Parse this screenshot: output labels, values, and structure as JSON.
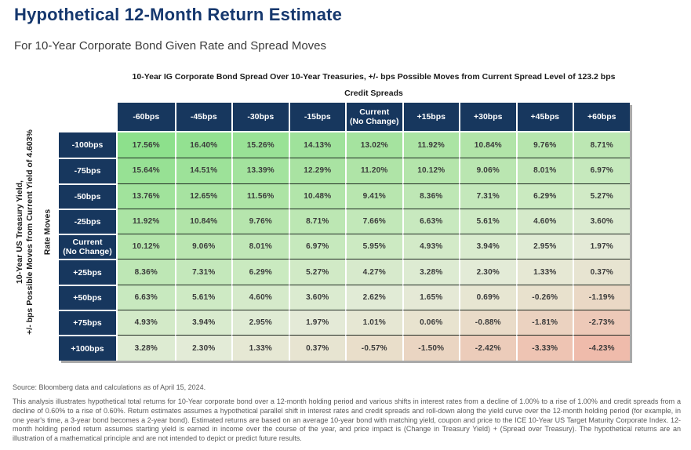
{
  "page": {
    "title": "Hypothetical 12-Month Return Estimate",
    "subtitle": "For 10-Year Corporate Bond Given Rate and Spread Moves"
  },
  "chart_data": {
    "type": "heatmap",
    "title": "Hypothetical 12-Month Return Estimate",
    "subtitle": "For 10-Year Corporate Bond Given Rate and Spread Moves",
    "columns_axis": {
      "note": "10-Year IG Corporate Bond Spread Over 10-Year Treasuries, +/- bps Possible Moves from Current Spread Level of 123.2 bps",
      "label": "Credit Spreads"
    },
    "rows_axis": {
      "note_line1": "10-Year US Treasury Yield,",
      "note_line2": "+/- bps Possible Moves from Current Yield of 4.603%",
      "label": "Rate Moves"
    },
    "columns": [
      "-60bps",
      "-45bps",
      "-30bps",
      "-15bps",
      "Current\n(No Change)",
      "+15bps",
      "+30bps",
      "+45bps",
      "+60bps"
    ],
    "rows": [
      "-100bps",
      "-75bps",
      "-50bps",
      "-25bps",
      "Current\n(No Change)",
      "+25bps",
      "+50bps",
      "+75bps",
      "+100bps"
    ],
    "values_pct": [
      [
        17.56,
        16.4,
        15.26,
        14.13,
        13.02,
        11.92,
        10.84,
        9.76,
        8.71
      ],
      [
        15.64,
        14.51,
        13.39,
        12.29,
        11.2,
        10.12,
        9.06,
        8.01,
        6.97
      ],
      [
        13.76,
        12.65,
        11.56,
        10.48,
        9.41,
        8.36,
        7.31,
        6.29,
        5.27
      ],
      [
        11.92,
        10.84,
        9.76,
        8.71,
        7.66,
        6.63,
        5.61,
        4.6,
        3.6
      ],
      [
        10.12,
        9.06,
        8.01,
        6.97,
        5.95,
        4.93,
        3.94,
        2.95,
        1.97
      ],
      [
        8.36,
        7.31,
        6.29,
        5.27,
        4.27,
        3.28,
        2.3,
        1.33,
        0.37
      ],
      [
        6.63,
        5.61,
        4.6,
        3.6,
        2.62,
        1.65,
        0.69,
        -0.26,
        -1.19
      ],
      [
        4.93,
        3.94,
        2.95,
        1.97,
        1.01,
        0.06,
        -0.88,
        -1.81,
        -2.73
      ],
      [
        3.28,
        2.3,
        1.33,
        0.37,
        -0.57,
        -1.5,
        -2.42,
        -3.33,
        -4.23
      ]
    ],
    "value_suffix": "%",
    "value_decimals": 2,
    "color_scale": {
      "stops": [
        {
          "value": -4.23,
          "color": "#EFBBAB"
        },
        {
          "value": 0.0,
          "color": "#E8E3CF"
        },
        {
          "value": 2.2,
          "color": "#E4EBD8"
        },
        {
          "value": 6.0,
          "color": "#CCEAC2"
        },
        {
          "value": 10.0,
          "color": "#B5E5AC"
        },
        {
          "value": 17.56,
          "color": "#8DE08C"
        }
      ]
    }
  },
  "footer": {
    "source": "Source: Bloomberg data and calculations as of April 15, 2024.",
    "disclosure": "This analysis illustrates hypothetical total returns for 10-Year corporate bond over a 12-month holding period and various shifts in interest rates from a decline of 1.00% to a rise of 1.00% and credit spreads from a decline of 0.60% to a rise of 0.60%. Return estimates assumes a hypothetical parallel shift in interest rates and credit spreads and roll-down along the yield curve over the 12-month holding period (for example, in one year's time, a 3-year bond becomes a 2-year bond). Estimated returns are based on an average 10-year bond with matching yield, coupon and price to the ICE 10-Year US Target Maturity Corporate Index. 12-month holding period return assumes starting yield is earned in income over the course of the year, and price impact is (Change in Treasury Yield) + (Spread over Treasury). The hypothetical returns are an illustration of a mathematical principle and are not intended to depict or predict future results."
  },
  "colors": {
    "title_blue": "#16386E",
    "header_navy": "#17375E",
    "row_divider_dark": "#1F2A22",
    "table_shadow_gray": "#A9A9A9",
    "body_text_gray": "#595959",
    "cell_text": "#3A3A3A"
  }
}
